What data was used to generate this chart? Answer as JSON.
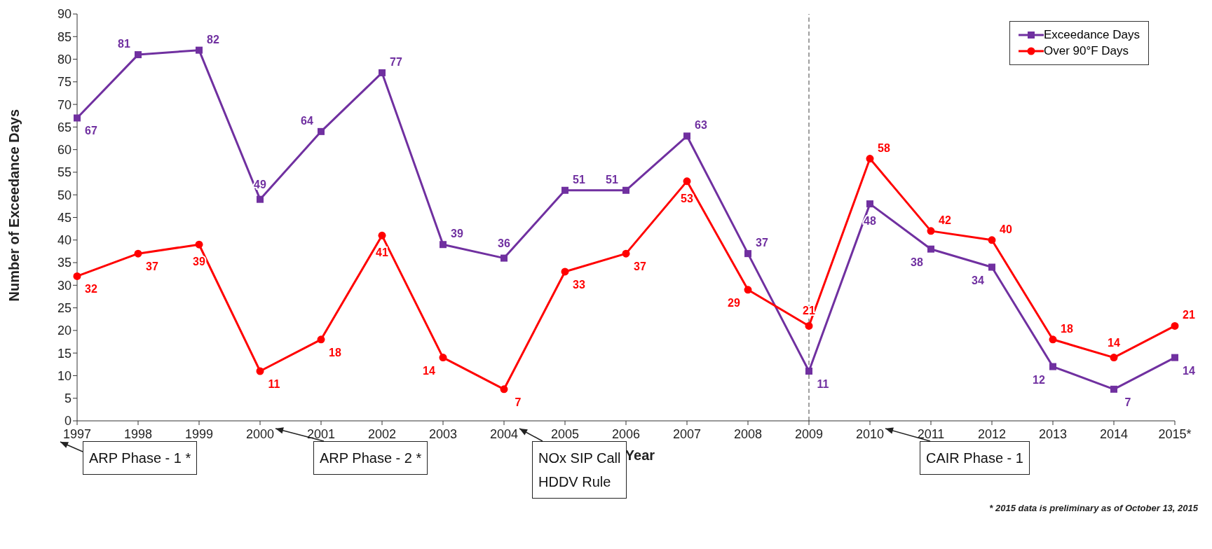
{
  "chart_data": {
    "type": "line",
    "xlabel": "Year",
    "ylabel": "Number of Exceedance Days",
    "categories": [
      "1997",
      "1998",
      "1999",
      "2000",
      "2001",
      "2002",
      "2003",
      "2004",
      "2005",
      "2006",
      "2007",
      "2008",
      "2009",
      "2010",
      "2011",
      "2012",
      "2013",
      "2014",
      "2015*"
    ],
    "series": [
      {
        "name": "Exceedance Days",
        "color": "#7030a0",
        "marker": "square",
        "values": [
          67,
          81,
          82,
          49,
          64,
          77,
          39,
          36,
          51,
          51,
          63,
          37,
          11,
          48,
          38,
          34,
          12,
          7,
          14
        ]
      },
      {
        "name": "Over 90°F Days",
        "color": "#ff0000",
        "marker": "circle",
        "values": [
          32,
          37,
          39,
          11,
          18,
          41,
          14,
          7,
          33,
          37,
          53,
          29,
          21,
          58,
          42,
          40,
          18,
          14,
          21
        ]
      }
    ],
    "ylim": [
      0,
      90
    ],
    "yticks": [
      0,
      5,
      10,
      15,
      20,
      25,
      30,
      35,
      40,
      45,
      50,
      55,
      60,
      65,
      70,
      75,
      80,
      85,
      90
    ],
    "grid": false,
    "legend": "top right",
    "data_labels": true,
    "line_style": "solid",
    "ref_lines": [
      {
        "axis": "x",
        "value": "2009",
        "color": "#404040",
        "line_style": "dashed"
      }
    ],
    "annotations": [
      "ARP Phase - 1 *",
      "ARP Phase - 2 *",
      "NOx SIP Call\nHDDV Rule",
      "CAIR Phase - 1",
      "* 2015 data is preliminary as of October 13, 2015"
    ]
  }
}
